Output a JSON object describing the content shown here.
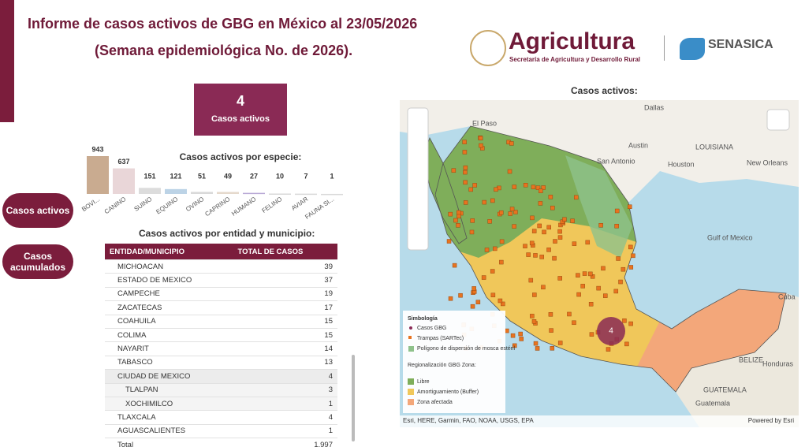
{
  "header": {
    "title": "Informe de casos activos de GBG en México al 23/05/2026",
    "subtitle": "(Semana epidemiológica No. de 2026).",
    "logo": "Agricultura",
    "logo_subtitle": "Secretaría de Agricultura y Desarrollo Rural",
    "agency": "SENASICA"
  },
  "kpi": {
    "value": "4",
    "label": "Casos activos"
  },
  "buttons": [
    "Casos activos",
    "Casos acumulados"
  ],
  "chart_data": {
    "type": "bar",
    "title": "Casos activos por especie:",
    "categories": [
      "BOVI...",
      "CANINO",
      "SUINO",
      "EQUINO",
      "OVINO",
      "CAPRINO",
      "HUMANO",
      "FELINO",
      "AVIAR",
      "FAUNA SI..."
    ],
    "values": [
      943,
      637,
      151,
      121,
      51,
      49,
      27,
      10,
      7,
      1
    ],
    "colors": [
      "#c9ab90",
      "#e9d6d8",
      "#dcdcdc",
      "#bcd3e6",
      "#d9d9d9",
      "#e5d9cc",
      "#b9a9d6",
      "#d8d8d8",
      "#d8d8d8",
      "#d8d8d8"
    ]
  },
  "table": {
    "title": "Casos activos por entidad y municipio:",
    "columns": [
      "ENTIDAD/MUNICIPIO",
      "TOTAL DE CASOS"
    ],
    "rows": [
      {
        "name": "MICHOACAN",
        "value": 39
      },
      {
        "name": "ESTADO DE MEXICO",
        "value": 37
      },
      {
        "name": "CAMPECHE",
        "value": 19
      },
      {
        "name": "ZACATECAS",
        "value": 17
      },
      {
        "name": "COAHUILA",
        "value": 15
      },
      {
        "name": "COLIMA",
        "value": 15
      },
      {
        "name": "NAYARIT",
        "value": 14
      },
      {
        "name": "TABASCO",
        "value": 13
      },
      {
        "name": "CIUDAD DE MEXICO",
        "value": 4,
        "children": [
          {
            "name": "TLALPAN",
            "value": 3
          },
          {
            "name": "XOCHIMILCO",
            "value": 1
          }
        ]
      },
      {
        "name": "TLAXCALA",
        "value": 4
      },
      {
        "name": "AGUASCALIENTES",
        "value": 1
      }
    ],
    "total_label": "Total",
    "total": "1.997"
  },
  "map": {
    "title": "Casos activos:",
    "cluster_count": "4",
    "places": [
      "Dallas",
      "El Paso",
      "Austin",
      "San Antonio",
      "Houston",
      "LOUISIANA",
      "New Orleans",
      "Gulf of Mexico",
      "Cuba",
      "BELIZE",
      "Honduras",
      "GUATEMALA",
      "Guatemala"
    ],
    "legend": {
      "title": "Simbología",
      "items": [
        "Casos GBG",
        "Trampas (SARTec)",
        "Polígono de dispersión de mosca estéril"
      ],
      "zone_title": "Regionalización GBG Zona:",
      "zones": [
        "Libre",
        "Amortiguamiento (Buffer)",
        "Zona afectada"
      ]
    },
    "attribution": "Esri, HERE, Garmin, FAO, NOAA, USGS, EPA",
    "powered_by": "Powered by Esri"
  }
}
